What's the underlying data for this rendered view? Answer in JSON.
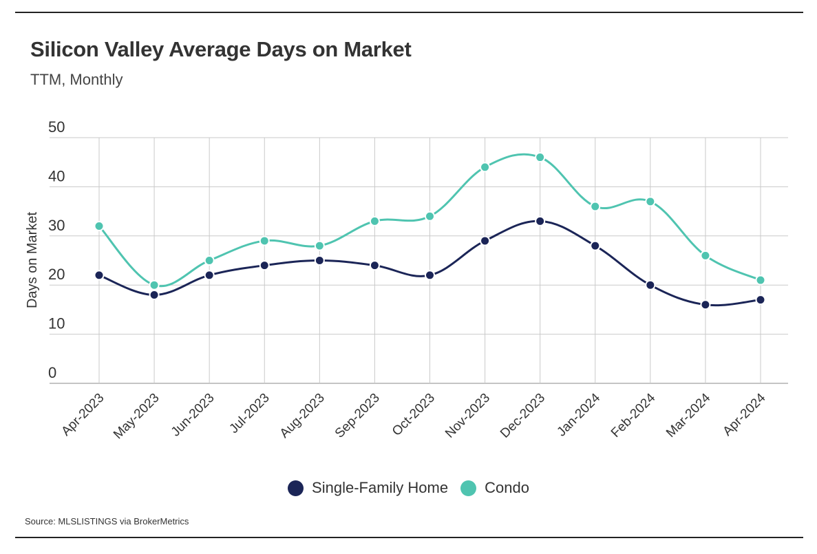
{
  "header": {
    "title": "Silicon Valley Average Days on Market",
    "subtitle": "TTM, Monthly"
  },
  "footer": {
    "source": "Source:  MLSLISTINGS via BrokerMetrics"
  },
  "chart_data": {
    "type": "line",
    "title": "Silicon Valley Average Days on Market",
    "subtitle": "TTM, Monthly",
    "xlabel": "",
    "ylabel": "Days on Market",
    "ylim": [
      0,
      50
    ],
    "yticks": [
      0,
      10,
      20,
      30,
      40,
      50
    ],
    "grid": true,
    "legend_position": "bottom",
    "categories": [
      "Apr-2023",
      "May-2023",
      "Jun-2023",
      "Jul-2023",
      "Aug-2023",
      "Sep-2023",
      "Oct-2023",
      "Nov-2023",
      "Dec-2023",
      "Jan-2024",
      "Feb-2024",
      "Mar-2024",
      "Apr-2024"
    ],
    "series": [
      {
        "name": "Single-Family Home",
        "color": "#1b2557",
        "values": [
          22,
          18,
          22,
          24,
          25,
          24,
          22,
          29,
          33,
          28,
          20,
          16,
          17
        ]
      },
      {
        "name": "Condo",
        "color": "#4fc4b0",
        "values": [
          32,
          20,
          25,
          29,
          28,
          33,
          34,
          44,
          46,
          36,
          37,
          26,
          21
        ]
      }
    ]
  }
}
